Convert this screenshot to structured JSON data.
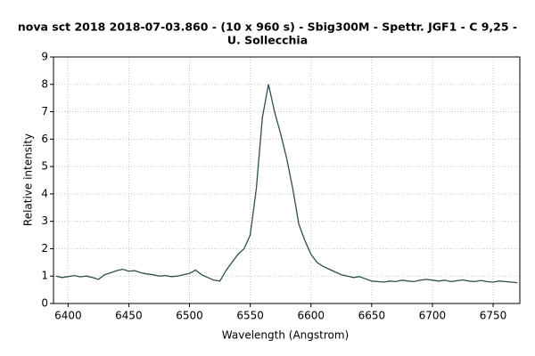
{
  "chart_data": {
    "type": "line",
    "title_lines": [
      "nova sct 2018  2018-07-03.860 - (10 x 960 s) - Sbig300M - Spettr. JGF1 - C 9,25 -",
      "U. Sollecchia"
    ],
    "x_label": "Wavelength (Angstrom)",
    "y_label": "Relative intensity",
    "x": [
      6390,
      6395,
      6400,
      6405,
      6410,
      6415,
      6420,
      6425,
      6430,
      6435,
      6440,
      6445,
      6450,
      6455,
      6460,
      6465,
      6470,
      6475,
      6480,
      6485,
      6490,
      6495,
      6500,
      6505,
      6510,
      6515,
      6520,
      6525,
      6530,
      6535,
      6540,
      6545,
      6550,
      6555,
      6560,
      6565,
      6570,
      6575,
      6580,
      6585,
      6590,
      6595,
      6600,
      6605,
      6610,
      6615,
      6620,
      6625,
      6630,
      6635,
      6640,
      6645,
      6650,
      6655,
      6660,
      6665,
      6670,
      6675,
      6680,
      6685,
      6690,
      6695,
      6700,
      6705,
      6710,
      6715,
      6720,
      6725,
      6730,
      6735,
      6740,
      6745,
      6750,
      6755,
      6760,
      6765,
      6770
    ],
    "values": [
      1.0,
      0.95,
      0.98,
      1.02,
      0.97,
      1.0,
      0.95,
      0.88,
      1.05,
      1.12,
      1.2,
      1.25,
      1.18,
      1.2,
      1.12,
      1.08,
      1.05,
      1.0,
      1.02,
      0.98,
      1.0,
      1.05,
      1.1,
      1.22,
      1.05,
      0.95,
      0.85,
      0.82,
      1.2,
      1.5,
      1.8,
      2.0,
      2.5,
      4.2,
      6.8,
      8.0,
      7.0,
      6.2,
      5.3,
      4.2,
      2.9,
      2.3,
      1.8,
      1.5,
      1.35,
      1.25,
      1.15,
      1.05,
      1.0,
      0.95,
      0.98,
      0.9,
      0.82,
      0.8,
      0.78,
      0.82,
      0.8,
      0.85,
      0.82,
      0.8,
      0.85,
      0.88,
      0.85,
      0.82,
      0.85,
      0.8,
      0.83,
      0.86,
      0.82,
      0.8,
      0.84,
      0.8,
      0.78,
      0.82,
      0.8,
      0.78,
      0.76
    ],
    "color": "#2f4f4f",
    "xlim": [
      6388,
      6772
    ],
    "xticks": [
      6400,
      6450,
      6500,
      6550,
      6600,
      6650,
      6700,
      6750
    ],
    "ylim": [
      0,
      9
    ],
    "yticks": [
      0,
      1,
      2,
      3,
      4,
      5,
      6,
      7,
      8,
      9
    ],
    "grid": true
  }
}
